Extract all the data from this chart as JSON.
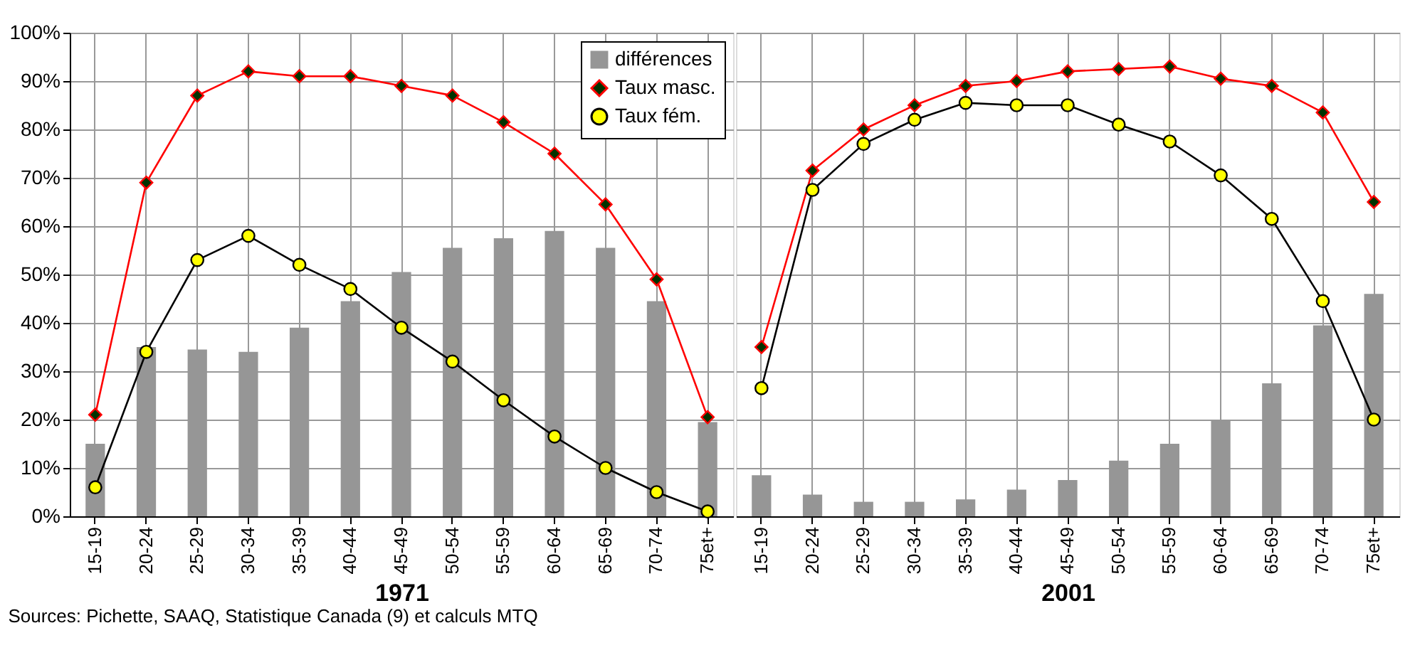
{
  "chart_data": [
    {
      "type": "bar",
      "xlabel": "1971",
      "categories": [
        "15-19",
        "20-24",
        "25-29",
        "30-34",
        "35-39",
        "40-44",
        "45-49",
        "50-54",
        "55-59",
        "60-64",
        "65-69",
        "70-74",
        "75et+"
      ],
      "series": [
        {
          "name": "différences",
          "color": "#969696",
          "values": [
            15,
            35,
            34.5,
            34,
            39,
            44.5,
            50.5,
            55.5,
            57.5,
            59,
            55.5,
            44.5,
            19.5
          ]
        },
        {
          "name": "Taux masc.",
          "type": "line",
          "color": "#ff0000",
          "marker": "diamond",
          "line_style": "solid",
          "colors": [
            "#003300",
            "#003300",
            "#003300",
            "#003300",
            "#003300",
            "#003300",
            "#003300",
            "#003300",
            "#003300",
            "#003300",
            "#003300",
            "#003300",
            "#003300"
          ],
          "values": [
            21,
            69,
            87,
            92,
            91,
            91,
            89,
            87,
            81.5,
            75,
            64.5,
            49,
            20.5
          ]
        },
        {
          "name": "Taux fém.",
          "type": "line",
          "color": "#000000",
          "marker": "circle",
          "line_style": "solid",
          "colors": [
            "#ffff00",
            "#ffff00",
            "#ffff00",
            "#ffff00",
            "#ffff00",
            "#ffff00",
            "#ffff00",
            "#ffff00",
            "#ffff00",
            "#ffff00",
            "#ffff00",
            "#ffff00",
            "#ffff00"
          ],
          "values": [
            6,
            34,
            53,
            58,
            52,
            47,
            39,
            32,
            24,
            16.5,
            10,
            5,
            1
          ]
        }
      ],
      "ylim": [
        0,
        100
      ],
      "yticks": [
        {
          "value": 0,
          "label": "0%"
        },
        {
          "value": 10,
          "label": "10%"
        },
        {
          "value": 20,
          "label": "20%"
        },
        {
          "value": 30,
          "label": "30%"
        },
        {
          "value": 40,
          "label": "40%"
        },
        {
          "value": 50,
          "label": "50%"
        },
        {
          "value": 60,
          "label": "60%"
        },
        {
          "value": 70,
          "label": "70%"
        },
        {
          "value": 80,
          "label": "80%"
        },
        {
          "value": 90,
          "label": "90%"
        },
        {
          "value": 100,
          "label": "100%"
        }
      ],
      "grid": true,
      "legend": "top right",
      "annotations": [
        "Sources: Pichette, SAAQ, Statistique Canada (9) et calculs MTQ"
      ]
    },
    {
      "type": "bar",
      "xlabel": "2001",
      "categories": [
        "15-19",
        "20-24",
        "25-29",
        "30-34",
        "35-39",
        "40-44",
        "45-49",
        "50-54",
        "55-59",
        "60-64",
        "65-69",
        "70-74",
        "75et+"
      ],
      "series": [
        {
          "color": "#969696",
          "values": [
            8.5,
            4.5,
            3,
            3,
            3.5,
            5.5,
            7.5,
            11.5,
            15,
            20,
            27.5,
            39.5,
            46
          ]
        },
        {
          "type": "line",
          "color": "#ff0000",
          "marker": "diamond",
          "line_style": "solid",
          "colors": [
            "#003300",
            "#003300",
            "#003300",
            "#003300",
            "#003300",
            "#003300",
            "#003300",
            "#003300",
            "#003300",
            "#003300",
            "#003300",
            "#003300",
            "#003300"
          ],
          "values": [
            35,
            71.5,
            80,
            85,
            89,
            90,
            92,
            92.5,
            93,
            90.5,
            89,
            83.5,
            65
          ]
        },
        {
          "type": "line",
          "color": "#000000",
          "marker": "circle",
          "line_style": "solid",
          "colors": [
            "#ffff00",
            "#ffff00",
            "#ffff00",
            "#ffff00",
            "#ffff00",
            "#ffff00",
            "#ffff00",
            "#ffff00",
            "#ffff00",
            "#ffff00",
            "#ffff00",
            "#ffff00",
            "#ffff00"
          ],
          "values": [
            26.5,
            67.5,
            77,
            82,
            85.5,
            85,
            85,
            81,
            77.5,
            70.5,
            61.5,
            44.5,
            20
          ]
        }
      ],
      "ylim": [
        0,
        100
      ],
      "yticks": [
        0,
        10,
        20,
        30,
        40,
        50,
        60,
        70,
        80,
        90,
        100
      ],
      "grid": true,
      "tick_labels": "x"
    }
  ]
}
